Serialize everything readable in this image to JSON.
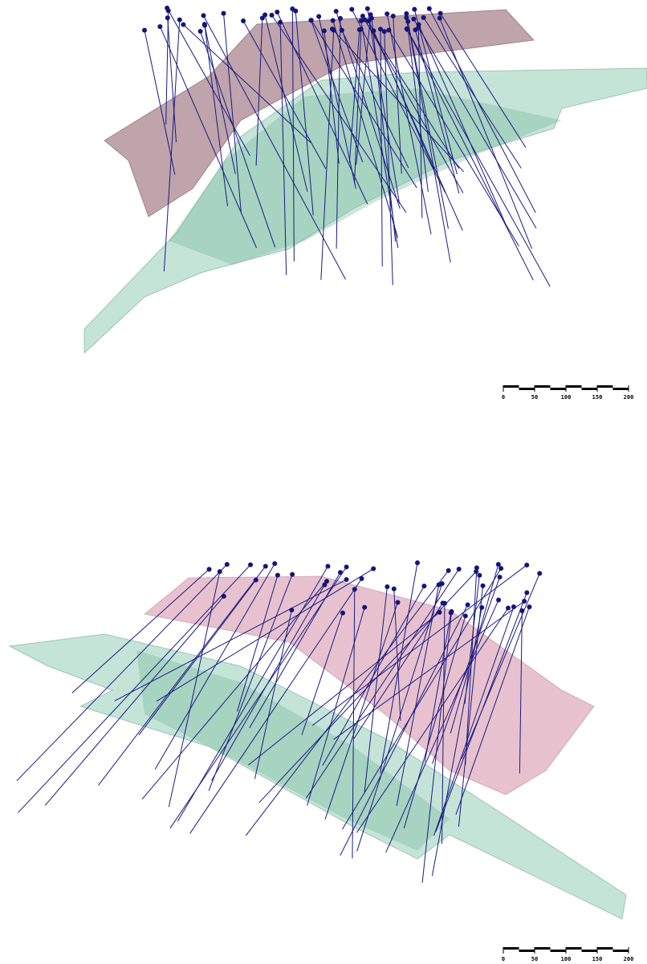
{
  "scale_bars": [
    {
      "ticks": [
        0,
        50,
        100,
        150,
        200
      ]
    },
    {
      "ticks": [
        0,
        50,
        100,
        150,
        200
      ]
    }
  ]
}
